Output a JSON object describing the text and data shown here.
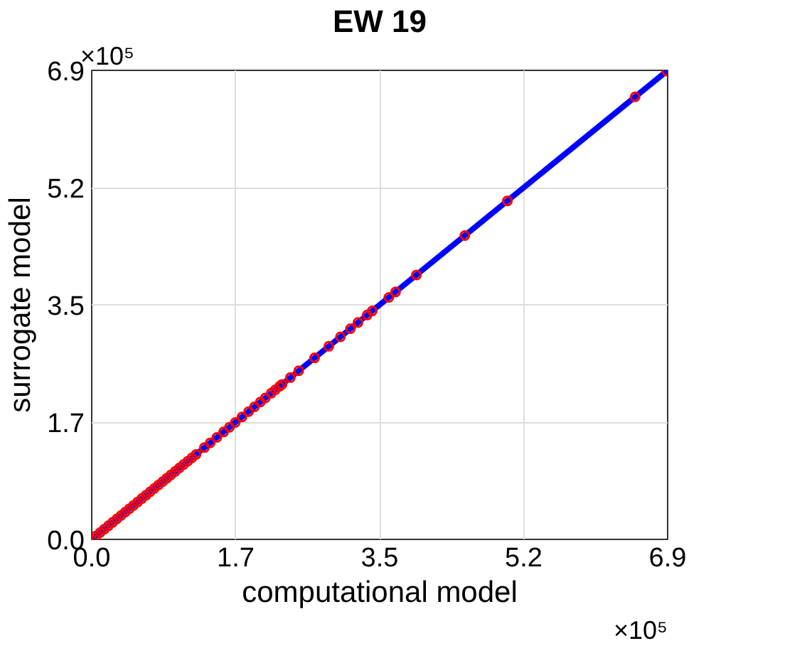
{
  "chart_data": {
    "type": "scatter",
    "title": "EW 19",
    "xlabel": "computational model",
    "ylabel": "surrogate model",
    "annotations": [
      "×10⁵",
      "×10⁵"
    ],
    "xlim": [
      0,
      6.9
    ],
    "ylim": [
      0,
      6.9
    ],
    "xticks": [
      {
        "value": 0,
        "label": "0.0"
      },
      {
        "value": 1.725,
        "label": "1.7"
      },
      {
        "value": 3.45,
        "label": "3.5"
      },
      {
        "value": 5.175,
        "label": "5.2"
      },
      {
        "value": 6.9,
        "label": "6.9"
      }
    ],
    "yticks": [
      {
        "value": 0,
        "label": "0.0"
      },
      {
        "value": 1.725,
        "label": "1.7"
      },
      {
        "value": 3.45,
        "label": "3.5"
      },
      {
        "value": 5.175,
        "label": "5.2"
      },
      {
        "value": 6.9,
        "label": "6.9"
      }
    ],
    "grid": true,
    "series": [
      {
        "type": "line",
        "marker": "none",
        "color": "#0000ff",
        "x": [
          0,
          6.9
        ],
        "values": [
          0,
          6.9
        ]
      },
      {
        "marker": "circle",
        "color": "#ff0000",
        "x": [
          0.0,
          0.05,
          0.1,
          0.15,
          0.2,
          0.25,
          0.3,
          0.35,
          0.4,
          0.45,
          0.5,
          0.55,
          0.6,
          0.65,
          0.7,
          0.75,
          0.8,
          0.85,
          0.9,
          0.95,
          1.0,
          1.05,
          1.1,
          1.15,
          1.2,
          1.25,
          1.35,
          1.42,
          1.5,
          1.58,
          1.65,
          1.72,
          1.8,
          1.88,
          1.95,
          2.02,
          2.08,
          2.15,
          2.2,
          2.25,
          2.28,
          2.38,
          2.48,
          2.67,
          2.84,
          2.98,
          3.1,
          3.19,
          3.3,
          3.36,
          3.56,
          3.64,
          3.89,
          4.47,
          4.98,
          6.51,
          6.89
        ],
        "values": [
          0.0,
          0.05,
          0.1,
          0.15,
          0.2,
          0.25,
          0.3,
          0.35,
          0.4,
          0.45,
          0.5,
          0.55,
          0.6,
          0.65,
          0.7,
          0.75,
          0.8,
          0.85,
          0.9,
          0.95,
          1.0,
          1.05,
          1.1,
          1.15,
          1.2,
          1.25,
          1.35,
          1.42,
          1.5,
          1.58,
          1.65,
          1.72,
          1.8,
          1.88,
          1.95,
          2.02,
          2.08,
          2.15,
          2.2,
          2.25,
          2.28,
          2.38,
          2.48,
          2.67,
          2.84,
          2.98,
          3.1,
          3.19,
          3.3,
          3.36,
          3.56,
          3.64,
          3.89,
          4.47,
          4.98,
          6.51,
          6.89
        ]
      }
    ]
  }
}
